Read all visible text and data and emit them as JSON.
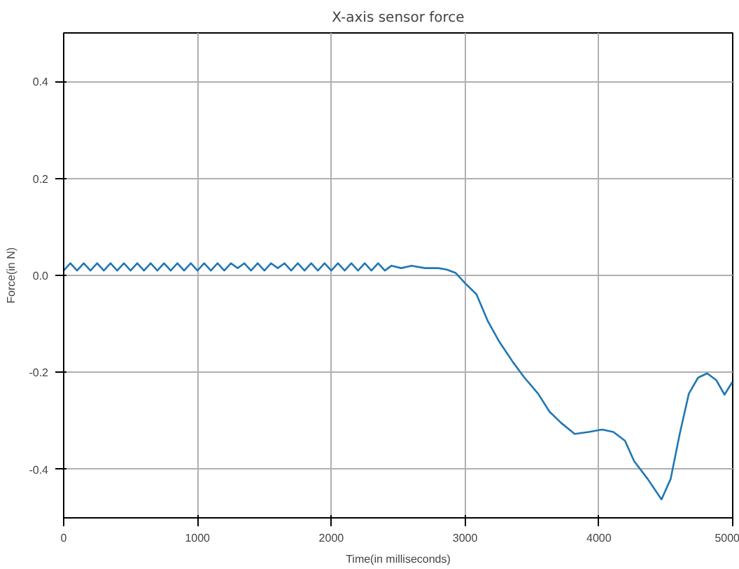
{
  "chart_data": {
    "type": "line",
    "title": "X-axis sensor force",
    "xlabel": "Time(in milliseconds)",
    "ylabel": "Force(in N)",
    "xlim": [
      0,
      5000
    ],
    "ylim": [
      -0.5,
      0.5
    ],
    "xticks": [
      0,
      1000,
      2000,
      3000,
      4000,
      5000
    ],
    "yticks": [
      {
        "value": -0.4,
        "label": "-0.4"
      },
      {
        "value": -0.2,
        "label": "-0.2"
      },
      {
        "value": 0,
        "label": "0.0"
      },
      {
        "value": 0.2,
        "label": "0.2"
      },
      {
        "value": 0.4,
        "label": "0.4"
      }
    ],
    "grid": true,
    "line_style": "solid",
    "marker": "none",
    "series": [
      {
        "color": "#1f77b4",
        "x": [
          0,
          50,
          100,
          150,
          200,
          250,
          300,
          350,
          400,
          450,
          500,
          550,
          600,
          650,
          700,
          750,
          800,
          850,
          900,
          950,
          1000,
          1050,
          1100,
          1150,
          1200,
          1250,
          1300,
          1350,
          1400,
          1450,
          1500,
          1550,
          1600,
          1650,
          1700,
          1750,
          1800,
          1850,
          1900,
          1950,
          2000,
          2050,
          2100,
          2150,
          2200,
          2250,
          2300,
          2350,
          2400,
          2450,
          2522,
          2600,
          2700,
          2800,
          2863,
          2930,
          3000,
          3085,
          3171,
          3256,
          3358,
          3444,
          3546,
          3631,
          3717,
          3819,
          3922,
          4024,
          4109,
          4195,
          4263,
          4365,
          4468,
          4536,
          4604,
          4672,
          4741,
          4809,
          4877,
          4939,
          4997
        ],
        "values": [
          0.01,
          0.025,
          0.01,
          0.025,
          0.01,
          0.025,
          0.01,
          0.025,
          0.01,
          0.025,
          0.01,
          0.025,
          0.01,
          0.025,
          0.01,
          0.025,
          0.01,
          0.025,
          0.01,
          0.025,
          0.01,
          0.025,
          0.01,
          0.025,
          0.01,
          0.025,
          0.015,
          0.025,
          0.01,
          0.025,
          0.01,
          0.025,
          0.015,
          0.025,
          0.01,
          0.025,
          0.01,
          0.025,
          0.01,
          0.025,
          0.01,
          0.025,
          0.01,
          0.025,
          0.01,
          0.025,
          0.01,
          0.025,
          0.01,
          0.02,
          0.015,
          0.02,
          0.015,
          0.015,
          0.012,
          0.005,
          -0.016,
          -0.039,
          -0.095,
          -0.137,
          -0.179,
          -0.211,
          -0.244,
          -0.281,
          -0.304,
          -0.327,
          -0.323,
          -0.318,
          -0.323,
          -0.341,
          -0.383,
          -0.42,
          -0.462,
          -0.42,
          -0.327,
          -0.244,
          -0.211,
          -0.202,
          -0.216,
          -0.246,
          -0.22
        ]
      }
    ]
  }
}
